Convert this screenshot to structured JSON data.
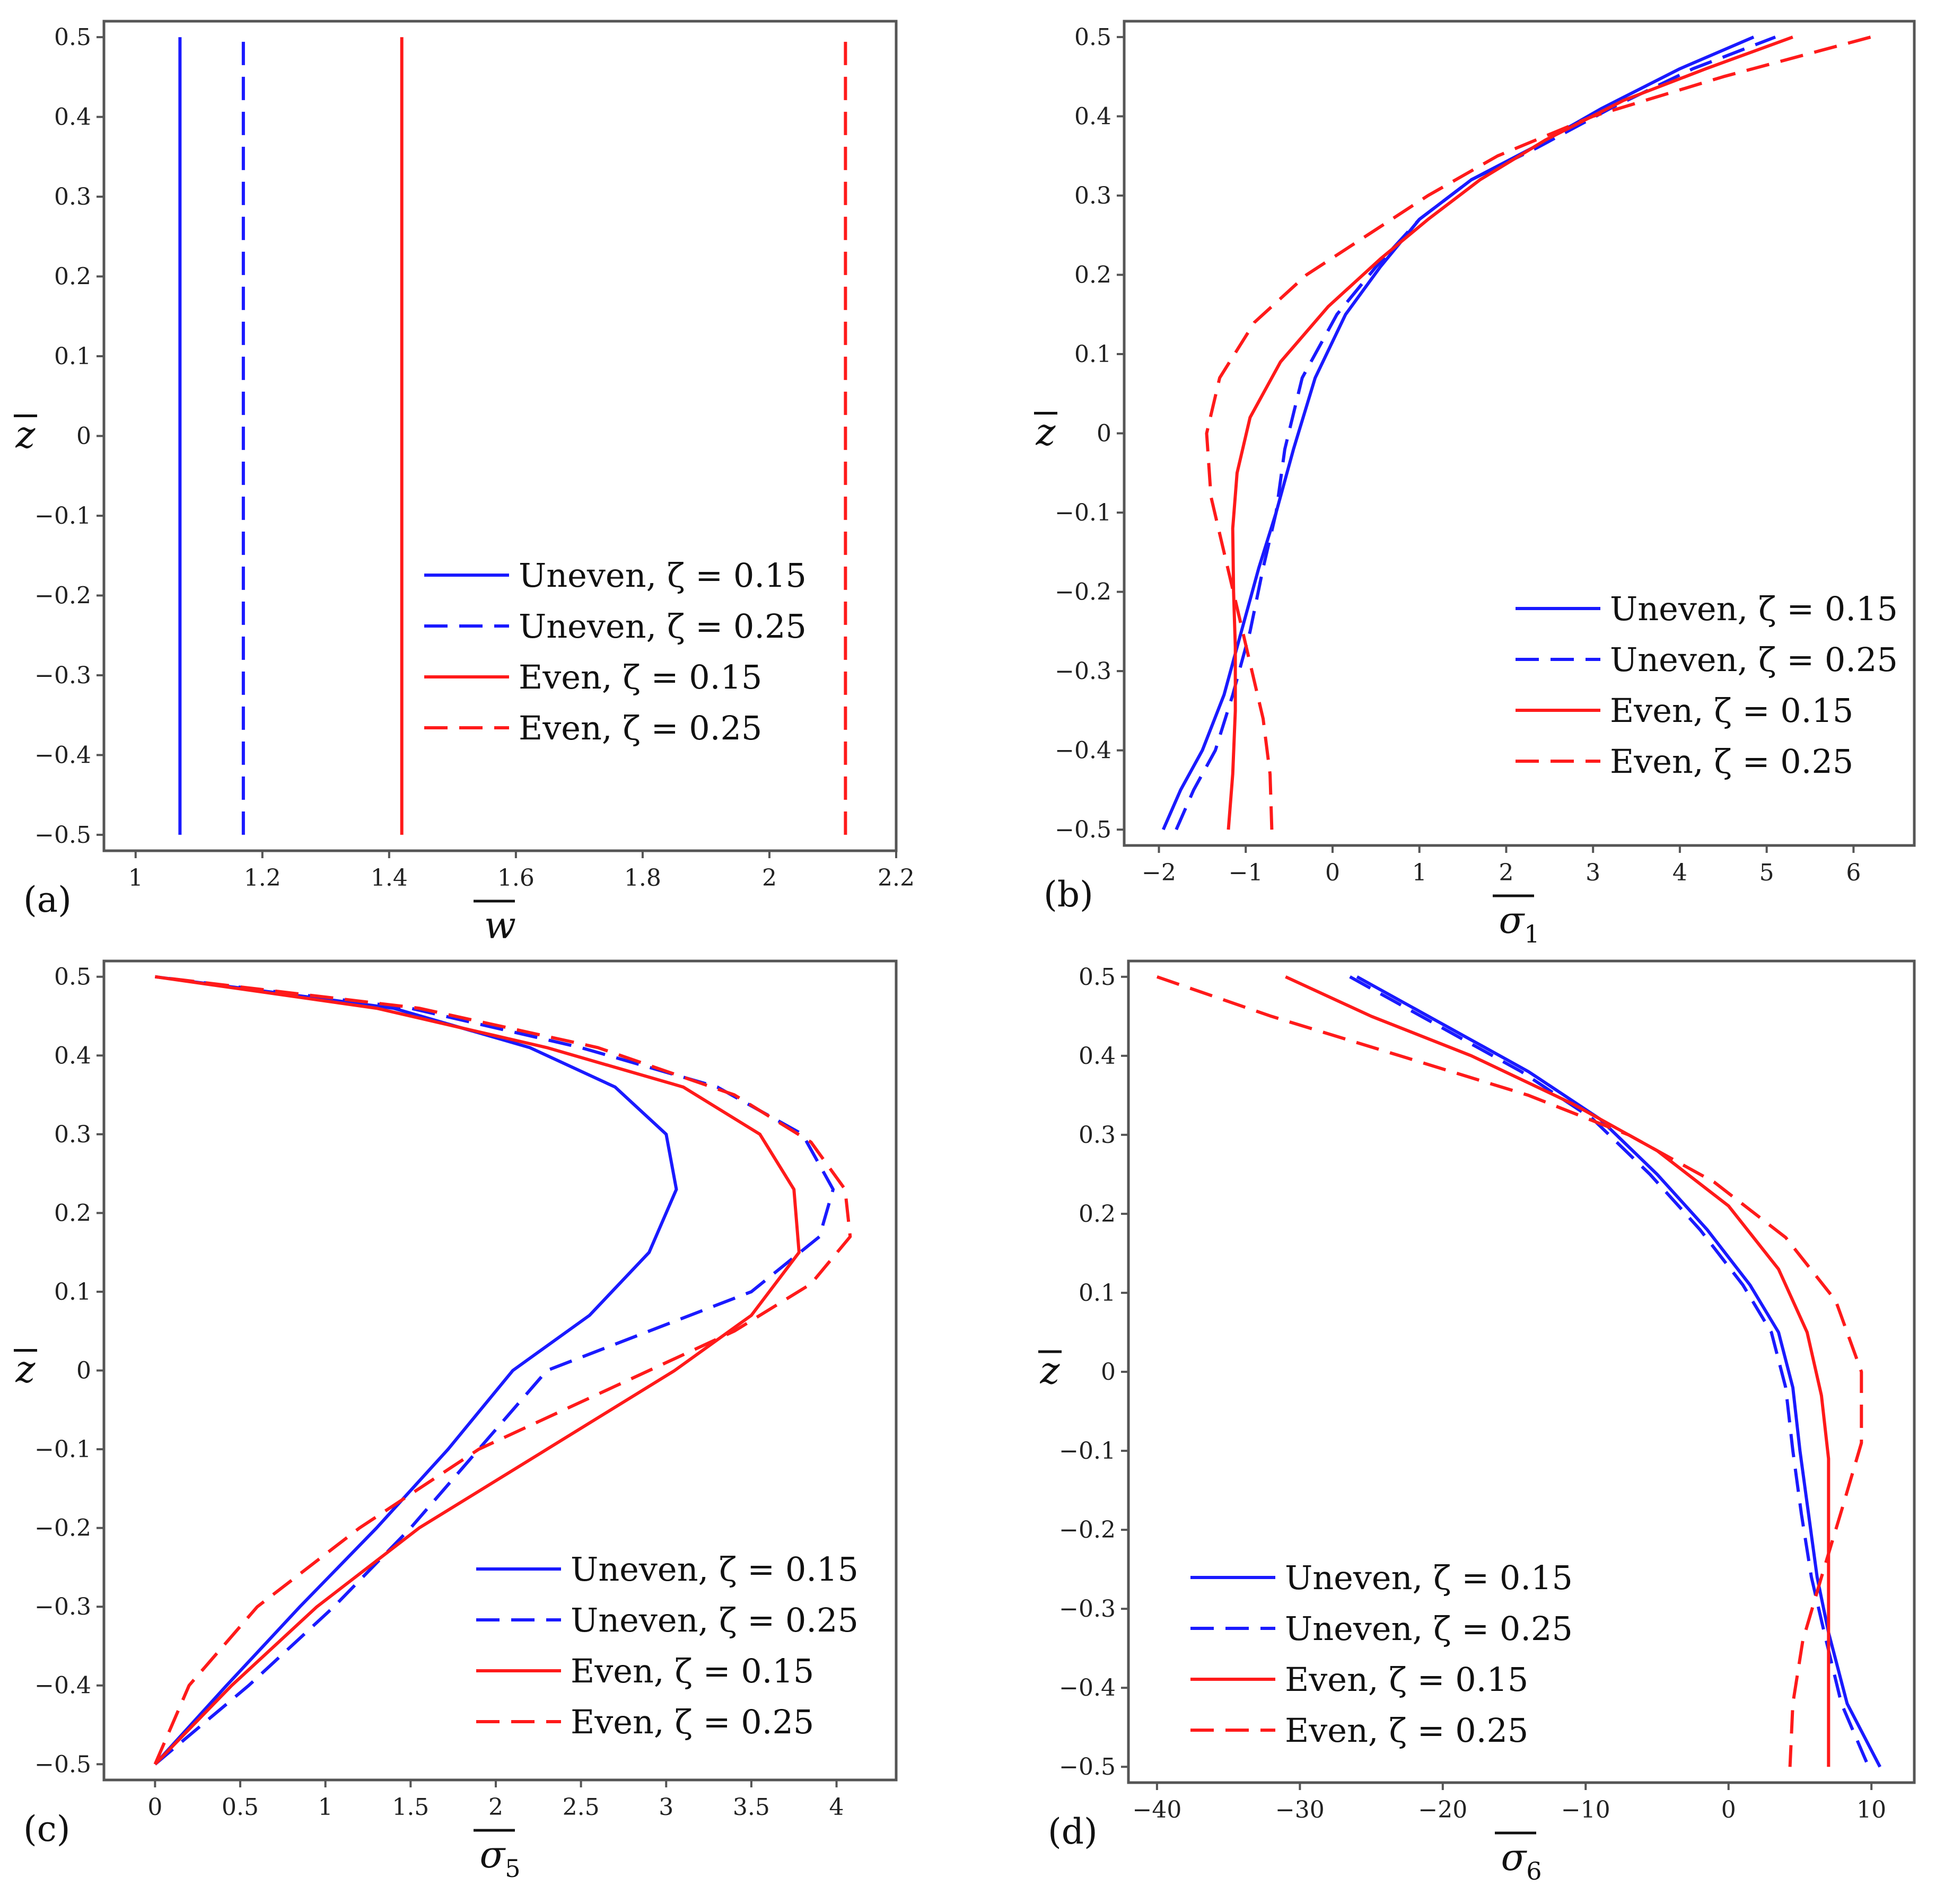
{
  "chart_data": [
    {
      "type": "line",
      "panel_label": "(a)",
      "xlabel": "w",
      "xlabel_sub": "",
      "ylabel": "z",
      "xlim": [
        0.95,
        2.2
      ],
      "ylim": [
        -0.52,
        0.52
      ],
      "xticks": [
        1,
        1.2,
        1.4,
        1.6,
        1.8,
        2,
        2.2
      ],
      "xtick_labels": [
        "1",
        "1.2",
        "1.4",
        "1.6",
        "1.8",
        "2",
        "2.2"
      ],
      "yticks": [
        0.5,
        0.4,
        0.3,
        0.2,
        0.1,
        0,
        -0.1,
        -0.2,
        -0.3,
        -0.4,
        -0.5
      ],
      "ytick_labels": [
        "0.5",
        "0.4",
        "0.3",
        "0.2",
        "0.1",
        "0",
        "−0.1",
        "−0.2",
        "−0.3",
        "−0.4",
        "−0.5"
      ],
      "legend_position": "bottom-right",
      "series": [
        {
          "name": "Uneven, ζ = 0.15",
          "color": "#1a1aff",
          "dash": "solid",
          "x": [
            1.07,
            1.07
          ],
          "y": [
            -0.5,
            0.5
          ]
        },
        {
          "name": "Uneven, ζ = 0.25",
          "color": "#1a1aff",
          "dash": "dashed",
          "x": [
            1.17,
            1.17
          ],
          "y": [
            -0.5,
            0.5
          ]
        },
        {
          "name": "Even, ζ = 0.15",
          "color": "#ff1a1a",
          "dash": "solid",
          "x": [
            1.42,
            1.42
          ],
          "y": [
            -0.5,
            0.5
          ]
        },
        {
          "name": "Even, ζ = 0.25",
          "color": "#ff1a1a",
          "dash": "dashed",
          "x": [
            2.12,
            2.12
          ],
          "y": [
            -0.5,
            0.5
          ]
        }
      ]
    },
    {
      "type": "line",
      "panel_label": "(b)",
      "xlabel": "σ",
      "xlabel_sub": "1",
      "ylabel": "z",
      "xlim": [
        -2.4,
        6.7
      ],
      "ylim": [
        -0.52,
        0.52
      ],
      "xticks": [
        -2,
        -1,
        0,
        1,
        2,
        3,
        4,
        5,
        6
      ],
      "xtick_labels": [
        "−2",
        "−1",
        "0",
        "1",
        "2",
        "3",
        "4",
        "5",
        "6"
      ],
      "yticks": [
        0.5,
        0.4,
        0.3,
        0.2,
        0.1,
        0,
        -0.1,
        -0.2,
        -0.3,
        -0.4,
        -0.5
      ],
      "ytick_labels": [
        "0.5",
        "0.4",
        "0.3",
        "0.2",
        "0.1",
        "0",
        "−0.1",
        "−0.2",
        "−0.3",
        "−0.4",
        "−0.5"
      ],
      "legend_position": "bottom-right",
      "series": [
        {
          "name": "Uneven, ζ = 0.15",
          "color": "#1a1aff",
          "dash": "solid",
          "x": [
            -1.95,
            -1.75,
            -1.5,
            -1.25,
            -1.05,
            -0.85,
            -0.65,
            -0.45,
            -0.2,
            0.15,
            0.55,
            1.0,
            1.6,
            2.3,
            3.1,
            4.0,
            4.85
          ],
          "y": [
            -0.5,
            -0.45,
            -0.4,
            -0.33,
            -0.25,
            -0.17,
            -0.1,
            -0.02,
            0.07,
            0.15,
            0.21,
            0.27,
            0.32,
            0.36,
            0.41,
            0.46,
            0.5
          ]
        },
        {
          "name": "Uneven, ζ = 0.25",
          "color": "#1a1aff",
          "dash": "dashed",
          "x": [
            -1.8,
            -1.6,
            -1.35,
            -1.15,
            -0.95,
            -0.8,
            -0.65,
            -0.55,
            -0.35,
            0.05,
            0.5,
            1.0,
            1.6,
            2.35,
            3.2,
            4.15,
            5.1
          ],
          "y": [
            -0.5,
            -0.45,
            -0.4,
            -0.33,
            -0.25,
            -0.17,
            -0.1,
            -0.02,
            0.07,
            0.15,
            0.21,
            0.27,
            0.32,
            0.36,
            0.41,
            0.46,
            0.5
          ]
        },
        {
          "name": "Even, ζ = 0.15",
          "color": "#ff1a1a",
          "dash": "solid",
          "x": [
            -1.2,
            -1.15,
            -1.12,
            -1.12,
            -1.14,
            -1.15,
            -1.1,
            -0.95,
            -0.6,
            -0.05,
            0.55,
            1.1,
            1.7,
            2.45,
            3.35,
            4.3,
            5.3
          ],
          "y": [
            -0.5,
            -0.43,
            -0.35,
            -0.27,
            -0.2,
            -0.12,
            -0.05,
            0.02,
            0.09,
            0.16,
            0.22,
            0.27,
            0.32,
            0.37,
            0.42,
            0.46,
            0.5
          ]
        },
        {
          "name": "Even, ζ = 0.25",
          "color": "#ff1a1a",
          "dash": "dashed",
          "x": [
            -0.7,
            -0.72,
            -0.8,
            -0.95,
            -1.1,
            -1.25,
            -1.4,
            -1.45,
            -1.3,
            -0.9,
            -0.3,
            0.4,
            1.1,
            1.9,
            3.0,
            4.5,
            6.2
          ],
          "y": [
            -0.5,
            -0.43,
            -0.36,
            -0.29,
            -0.22,
            -0.15,
            -0.08,
            0.0,
            0.07,
            0.14,
            0.2,
            0.25,
            0.3,
            0.35,
            0.4,
            0.45,
            0.5
          ]
        }
      ]
    },
    {
      "type": "line",
      "panel_label": "(c)",
      "xlabel": "σ",
      "xlabel_sub": "5",
      "ylabel": "z",
      "xlim": [
        -0.3,
        4.35
      ],
      "ylim": [
        -0.52,
        0.52
      ],
      "xticks": [
        0,
        0.5,
        1,
        1.5,
        2,
        2.5,
        3,
        3.5,
        4
      ],
      "xtick_labels": [
        "0",
        "0.5",
        "1",
        "1.5",
        "2",
        "2.5",
        "3",
        "3.5",
        "4"
      ],
      "yticks": [
        0.5,
        0.4,
        0.3,
        0.2,
        0.1,
        0,
        -0.1,
        -0.2,
        -0.3,
        -0.4,
        -0.5
      ],
      "ytick_labels": [
        "0.5",
        "0.4",
        "0.3",
        "0.2",
        "0.1",
        "0",
        "−0.1",
        "−0.2",
        "−0.3",
        "−0.4",
        "−0.5"
      ],
      "legend_position": "bottom-right",
      "series": [
        {
          "name": "Uneven, ζ = 0.15",
          "color": "#1a1aff",
          "dash": "solid",
          "x": [
            0,
            0.42,
            0.85,
            1.3,
            1.72,
            2.1,
            2.55,
            2.9,
            3.06,
            3.0,
            2.7,
            2.2,
            1.4,
            0
          ],
          "y": [
            -0.5,
            -0.4,
            -0.3,
            -0.2,
            -0.1,
            0.0,
            0.07,
            0.15,
            0.23,
            0.3,
            0.36,
            0.41,
            0.46,
            0.5
          ]
        },
        {
          "name": "Uneven, ζ = 0.25",
          "color": "#1a1aff",
          "dash": "dashed",
          "x": [
            0,
            0.55,
            1.05,
            1.5,
            1.9,
            2.3,
            2.9,
            3.5,
            3.9,
            3.98,
            3.8,
            3.3,
            2.5,
            1.5,
            0
          ],
          "y": [
            -0.5,
            -0.4,
            -0.3,
            -0.2,
            -0.1,
            0.0,
            0.05,
            0.1,
            0.17,
            0.23,
            0.3,
            0.36,
            0.41,
            0.46,
            0.5
          ]
        },
        {
          "name": "Even, ζ = 0.15",
          "color": "#ff1a1a",
          "dash": "solid",
          "x": [
            0,
            0.45,
            0.95,
            1.55,
            2.3,
            3.05,
            3.5,
            3.78,
            3.75,
            3.55,
            3.1,
            2.3,
            1.3,
            0
          ],
          "y": [
            -0.5,
            -0.4,
            -0.3,
            -0.2,
            -0.1,
            0.0,
            0.07,
            0.15,
            0.23,
            0.3,
            0.36,
            0.41,
            0.46,
            0.5
          ]
        },
        {
          "name": "Even, ζ = 0.25",
          "color": "#ff1a1a",
          "dash": "dashed",
          "x": [
            0,
            0.2,
            0.6,
            1.2,
            1.9,
            2.7,
            3.4,
            3.85,
            4.08,
            4.05,
            3.85,
            3.4,
            2.6,
            1.55,
            0
          ],
          "y": [
            -0.5,
            -0.4,
            -0.3,
            -0.2,
            -0.1,
            -0.02,
            0.05,
            0.11,
            0.17,
            0.23,
            0.29,
            0.35,
            0.41,
            0.46,
            0.5
          ]
        }
      ]
    },
    {
      "type": "line",
      "panel_label": "(d)",
      "xlabel": "σ",
      "xlabel_sub": "6",
      "ylabel": "z",
      "xlim": [
        -42,
        13
      ],
      "ylim": [
        -0.52,
        0.52
      ],
      "xticks": [
        -40,
        -30,
        -20,
        -10,
        0,
        10
      ],
      "xtick_labels": [
        "−40",
        "−30",
        "−20",
        "−10",
        "0",
        "10"
      ],
      "yticks": [
        0.5,
        0.4,
        0.3,
        0.2,
        0.1,
        0,
        -0.1,
        -0.2,
        -0.3,
        -0.4,
        -0.5
      ],
      "ytick_labels": [
        "0.5",
        "0.4",
        "0.3",
        "0.2",
        "0.1",
        "0",
        "−0.1",
        "−0.2",
        "−0.3",
        "−0.4",
        "−0.5"
      ],
      "legend_position": "bottom-left",
      "series": [
        {
          "name": "Uneven, ζ = 0.15",
          "color": "#1a1aff",
          "dash": "solid",
          "x": [
            -26,
            -20,
            -14,
            -9,
            -5,
            -1.5,
            1.5,
            3.5,
            4.5,
            5.0,
            5.6,
            6.2,
            7.0,
            8.3,
            10.6
          ],
          "y": [
            0.5,
            0.44,
            0.38,
            0.32,
            0.25,
            0.18,
            0.11,
            0.05,
            -0.02,
            -0.1,
            -0.18,
            -0.26,
            -0.33,
            -0.42,
            -0.5
          ]
        },
        {
          "name": "Uneven, ζ = 0.25",
          "color": "#1a1aff",
          "dash": "dashed",
          "x": [
            -26.5,
            -20.5,
            -14.5,
            -9.5,
            -5.5,
            -2,
            1,
            3,
            4,
            4.5,
            5.1,
            5.8,
            6.7,
            7.9,
            9.8
          ],
          "y": [
            0.5,
            0.44,
            0.38,
            0.32,
            0.25,
            0.18,
            0.11,
            0.05,
            -0.02,
            -0.1,
            -0.18,
            -0.26,
            -0.33,
            -0.42,
            -0.5
          ]
        },
        {
          "name": "Even, ζ = 0.15",
          "color": "#ff1a1a",
          "dash": "solid",
          "x": [
            -31,
            -25,
            -18,
            -11,
            -5,
            0,
            3.5,
            5.5,
            6.5,
            7.0,
            7.0,
            7.0,
            7.0,
            7.0,
            7.0
          ],
          "y": [
            0.5,
            0.45,
            0.4,
            0.34,
            0.28,
            0.21,
            0.13,
            0.05,
            -0.03,
            -0.11,
            -0.19,
            -0.27,
            -0.35,
            -0.43,
            -0.5
          ]
        },
        {
          "name": "Even, ζ = 0.25",
          "color": "#ff1a1a",
          "dash": "dashed",
          "x": [
            -40,
            -32,
            -23,
            -14,
            -7,
            -1,
            4,
            7.5,
            9.3,
            9.3,
            8,
            6.5,
            5.2,
            4.5,
            4.3
          ],
          "y": [
            0.5,
            0.45,
            0.4,
            0.35,
            0.3,
            0.24,
            0.17,
            0.09,
            0.0,
            -0.09,
            -0.17,
            -0.26,
            -0.34,
            -0.42,
            -0.5
          ]
        }
      ]
    }
  ]
}
